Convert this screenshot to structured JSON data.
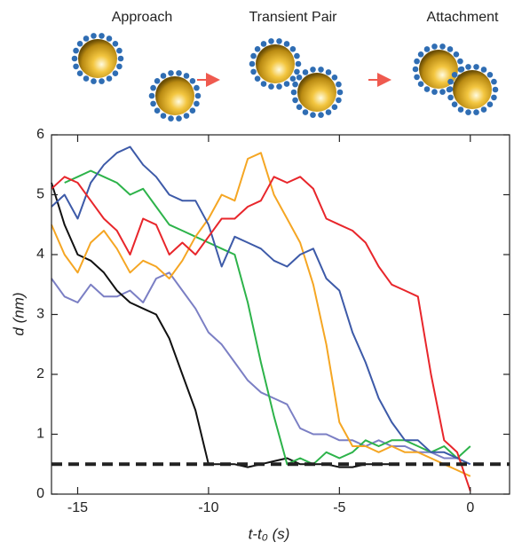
{
  "chart_data": {
    "type": "line",
    "schematic_labels": [
      "Approach",
      "Transient Pair",
      "Attachment"
    ],
    "xlabel": "t-t₀ (s)",
    "ylabel": "d (nm)",
    "xlim": [
      -16,
      1.5
    ],
    "ylim": [
      0,
      6
    ],
    "xticks": [
      -15,
      -10,
      -5,
      0
    ],
    "yticks": [
      0,
      1,
      2,
      3,
      4,
      5,
      6
    ],
    "reference_line": {
      "value": 0.5,
      "color": "#222222"
    },
    "x": [
      -16,
      -15.5,
      -15,
      -14.5,
      -14,
      -13.5,
      -13,
      -12.5,
      -12,
      -11.5,
      -11,
      -10.5,
      -10,
      -9.5,
      -9,
      -8.5,
      -8,
      -7.5,
      -7,
      -6.5,
      -6,
      -5.5,
      -5,
      -4.5,
      -4,
      -3.5,
      -3,
      -2.5,
      -2,
      -1.5,
      -1,
      -0.5,
      0
    ],
    "series": [
      {
        "color": "#7b7fc4",
        "values": [
          3.6,
          3.3,
          3.2,
          3.5,
          3.3,
          3.3,
          3.4,
          3.2,
          3.6,
          3.7,
          3.4,
          3.1,
          2.7,
          2.5,
          2.2,
          1.9,
          1.7,
          1.6,
          1.5,
          1.1,
          1.0,
          1.0,
          0.9,
          0.9,
          0.8,
          0.9,
          0.8,
          0.8,
          0.7,
          0.7,
          0.6,
          0.6,
          null
        ]
      },
      {
        "color": "#111111",
        "values": [
          5.2,
          4.5,
          4.0,
          3.9,
          3.7,
          3.4,
          3.2,
          3.1,
          3.0,
          2.6,
          2.0,
          1.4,
          0.5,
          0.5,
          0.5,
          0.45,
          0.5,
          0.55,
          0.6,
          0.5,
          0.5,
          0.5,
          0.45,
          0.45,
          0.5,
          0.5,
          0.5,
          null,
          null,
          null,
          null,
          null,
          null
        ]
      },
      {
        "color": "#2db34a",
        "values": [
          null,
          5.2,
          5.3,
          5.4,
          5.3,
          5.2,
          5.0,
          5.1,
          4.8,
          4.5,
          4.4,
          4.3,
          4.2,
          4.1,
          4.0,
          3.2,
          2.2,
          1.3,
          0.5,
          0.6,
          0.5,
          0.7,
          0.6,
          0.7,
          0.9,
          0.8,
          0.9,
          0.9,
          0.8,
          0.7,
          0.8,
          0.6,
          0.8
        ]
      },
      {
        "color": "#f5a623",
        "values": [
          4.5,
          4.0,
          3.7,
          4.2,
          4.4,
          4.1,
          3.7,
          3.9,
          3.8,
          3.6,
          3.9,
          4.3,
          4.6,
          5.0,
          4.9,
          5.6,
          5.7,
          5.0,
          4.6,
          4.2,
          3.5,
          2.5,
          1.2,
          0.8,
          0.8,
          0.7,
          0.8,
          0.7,
          0.7,
          0.6,
          0.5,
          0.4,
          0.3
        ]
      },
      {
        "color": "#3d5aa8",
        "values": [
          4.8,
          5.0,
          4.6,
          5.2,
          5.5,
          5.7,
          5.8,
          5.5,
          5.3,
          5.0,
          4.9,
          4.9,
          4.5,
          3.8,
          4.3,
          4.2,
          4.1,
          3.9,
          3.8,
          4.0,
          4.1,
          3.6,
          3.4,
          2.7,
          2.2,
          1.6,
          1.2,
          0.9,
          0.9,
          0.7,
          0.7,
          0.6,
          0.5
        ]
      },
      {
        "color": "#e8262b",
        "values": [
          5.1,
          5.3,
          5.2,
          4.9,
          4.6,
          4.4,
          4.0,
          4.6,
          4.5,
          4.0,
          4.2,
          4.0,
          4.3,
          4.6,
          4.6,
          4.8,
          4.9,
          5.3,
          5.2,
          5.3,
          5.1,
          4.6,
          4.5,
          4.4,
          4.2,
          3.8,
          3.5,
          3.4,
          3.3,
          2.0,
          0.9,
          0.7,
          0.05
        ]
      }
    ]
  }
}
